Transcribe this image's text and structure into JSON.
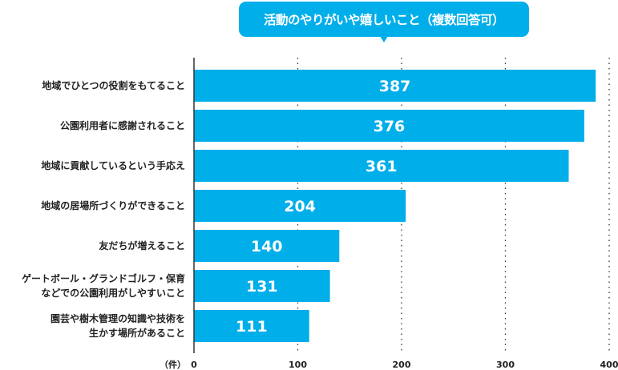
{
  "chart_data": {
    "type": "bar",
    "orientation": "horizontal",
    "title": "活動のやりがいや嬉しいこと（複数回答可）",
    "unit_label": "（件）",
    "categories": [
      [
        "地域でひとつの役割をもてること"
      ],
      [
        "公園利用者に感謝されること"
      ],
      [
        "地域に貢献しているという手応え"
      ],
      [
        "地域の居場所づくりができること"
      ],
      [
        "友だちが増えること"
      ],
      [
        "ゲートボール・グランドゴルフ・保育",
        "などでの公園利用がしやすいこと"
      ],
      [
        "園芸や樹木管理の知識や技術を",
        "生かす場所があること"
      ]
    ],
    "values": [
      387,
      376,
      361,
      204,
      140,
      131,
      111
    ],
    "xlim": [
      0,
      400
    ],
    "ticks": [
      0,
      100,
      200,
      300,
      400
    ],
    "grid": "dotted vertical",
    "bar_color": "#00aeea"
  }
}
